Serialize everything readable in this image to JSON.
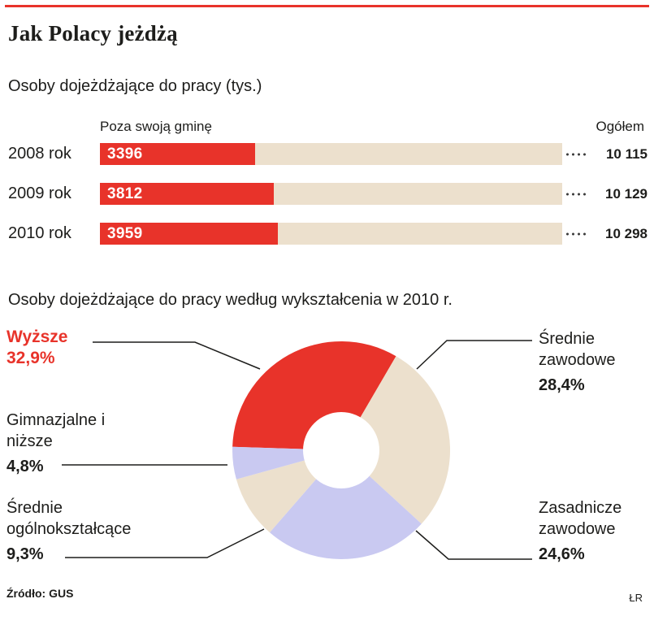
{
  "colors": {
    "accent_red": "#e8332a",
    "bar_track_beige": "#ece0cd",
    "lavender": "#c9c9f1",
    "text": "#1d1d1b",
    "background": "#ffffff"
  },
  "header": {
    "title": "Jak Polacy jeżdżą"
  },
  "bar_section": {
    "subtitle": "Osoby dojeżdżające do pracy (tys.)",
    "col_left_label": "Poza swoją gminę",
    "col_right_label": "Ogółem",
    "rows": [
      {
        "year": "2008 rok",
        "value": 3396,
        "value_label": "3396",
        "total": 10115,
        "total_label": "10 115"
      },
      {
        "year": "2009 rok",
        "value": 3812,
        "value_label": "3812",
        "total": 10129,
        "total_label": "10 129"
      },
      {
        "year": "2010 rok",
        "value": 3959,
        "value_label": "3959",
        "total": 10298,
        "total_label": "10 298"
      }
    ]
  },
  "pie_section": {
    "subtitle": "Osoby dojeżdżające do pracy według wykształcenia w 2010 r.",
    "segments": [
      {
        "id": "wyzsze",
        "label": "Wyższe",
        "pct_label": "32,9%",
        "value": 32.9,
        "color": "#e8332a"
      },
      {
        "id": "srednie-zawodowe",
        "label": "Średnie zawodowe",
        "pct_label": "28,4%",
        "value": 28.4,
        "color": "#ece0cd"
      },
      {
        "id": "zasadnicze-zawodowe",
        "label": "Zasadnicze zawodowe",
        "pct_label": "24,6%",
        "value": 24.6,
        "color": "#c9c9f1"
      },
      {
        "id": "srednie-ogolnoksztalcace",
        "label": "Średnie ogólnokształcące",
        "pct_label": "9,3%",
        "value": 9.3,
        "color": "#ece0cd"
      },
      {
        "id": "gimnazjalne-i-nizsze",
        "label": "Gimnazjalne i niższe",
        "pct_label": "4,8%",
        "value": 4.8,
        "color": "#c9c9f1"
      }
    ]
  },
  "footer": {
    "source": "Źródło: GUS",
    "credit": "ŁR"
  },
  "chart_data": [
    {
      "type": "bar",
      "orientation": "horizontal",
      "title": "Osoby dojeżdżające do pracy (tys.)",
      "categories": [
        "2008 rok",
        "2009 rok",
        "2010 rok"
      ],
      "series": [
        {
          "name": "Poza swoją gminę",
          "values": [
            3396,
            3812,
            3959
          ]
        },
        {
          "name": "Ogółem",
          "values": [
            10115,
            10129,
            10298
          ]
        }
      ],
      "unit": "tys.",
      "xlim": [
        0,
        10298
      ]
    },
    {
      "type": "pie",
      "donut": true,
      "title": "Osoby dojeżdżające do pracy według wykształcenia w 2010 r.",
      "labels": [
        "Wyższe",
        "Średnie zawodowe",
        "Zasadnicze zawodowe",
        "Średnie ogólnokształcące",
        "Gimnazjalne i niższe"
      ],
      "values": [
        32.9,
        28.4,
        24.6,
        9.3,
        4.8
      ],
      "colors": [
        "#e8332a",
        "#ece0cd",
        "#c9c9f1",
        "#ece0cd",
        "#c9c9f1"
      ]
    }
  ]
}
